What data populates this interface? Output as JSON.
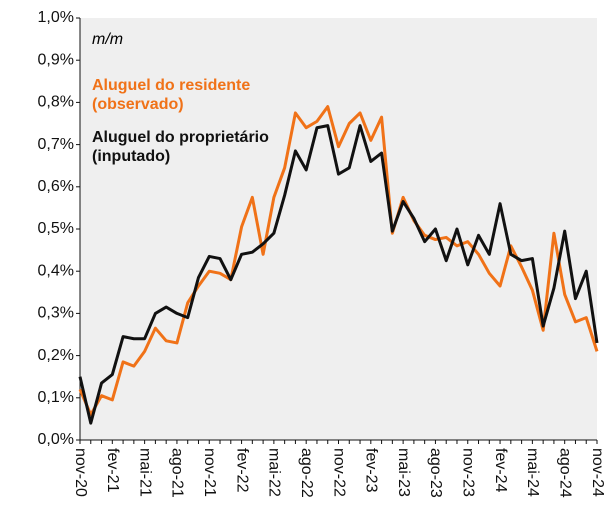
{
  "chart_data": {
    "type": "line",
    "subtitle": "m/m",
    "categories": [
      "nov-20",
      null,
      null,
      "fev-21",
      null,
      null,
      "mai-21",
      null,
      null,
      "ago-21",
      null,
      null,
      "nov-21",
      null,
      null,
      "fev-22",
      null,
      null,
      "mai-22",
      null,
      null,
      "ago-22",
      null,
      null,
      "nov-22",
      null,
      null,
      "fev-23",
      null,
      null,
      "mai-23",
      null,
      null,
      "ago-23",
      null,
      null,
      "nov-23",
      null,
      null,
      "fev-24",
      null,
      null,
      "mai-24",
      null,
      null,
      "ago-24",
      null,
      null,
      "nov-24"
    ],
    "series": [
      {
        "name": "Aluguel do residente (observado)",
        "color": "#f07218",
        "values": [
          0.12,
          0.06,
          0.105,
          0.095,
          0.185,
          0.175,
          0.21,
          0.265,
          0.235,
          0.23,
          0.325,
          0.365,
          0.4,
          0.395,
          0.38,
          0.505,
          0.575,
          0.44,
          0.575,
          0.645,
          0.775,
          0.74,
          0.755,
          0.79,
          0.695,
          0.75,
          0.775,
          0.71,
          0.765,
          0.49,
          0.575,
          0.52,
          0.485,
          0.475,
          0.48,
          0.46,
          0.47,
          0.44,
          0.395,
          0.365,
          0.46,
          0.41,
          0.355,
          0.26,
          0.49,
          0.345,
          0.28,
          0.29,
          0.21
        ]
      },
      {
        "name": "Aluguel do proprietário (inputado)",
        "color": "#111111",
        "values": [
          0.15,
          0.04,
          0.135,
          0.155,
          0.245,
          0.24,
          0.24,
          0.3,
          0.315,
          0.3,
          0.29,
          0.385,
          0.435,
          0.43,
          0.38,
          0.44,
          0.445,
          0.465,
          0.49,
          0.58,
          0.685,
          0.64,
          0.74,
          0.745,
          0.63,
          0.645,
          0.745,
          0.66,
          0.68,
          0.495,
          0.565,
          0.525,
          0.47,
          0.5,
          0.425,
          0.5,
          0.415,
          0.485,
          0.44,
          0.56,
          0.44,
          0.425,
          0.43,
          0.27,
          0.36,
          0.495,
          0.335,
          0.4,
          0.23
        ]
      }
    ],
    "ylim": [
      0,
      1
    ],
    "yticks": [
      {
        "value": 0,
        "label": "0,0%"
      },
      {
        "value": 0.1,
        "label": "0,1%"
      },
      {
        "value": 0.2,
        "label": "0,2%"
      },
      {
        "value": 0.3,
        "label": "0,3%"
      },
      {
        "value": 0.4,
        "label": "0,4%"
      },
      {
        "value": 0.5,
        "label": "0,5%"
      },
      {
        "value": 0.6,
        "label": "0,6%"
      },
      {
        "value": 0.7,
        "label": "0,7%"
      },
      {
        "value": 0.8,
        "label": "0,8%"
      },
      {
        "value": 0.9,
        "label": "0,9%"
      },
      {
        "value": 1,
        "label": "1,0%"
      }
    ],
    "plot_background": "#efefef"
  }
}
